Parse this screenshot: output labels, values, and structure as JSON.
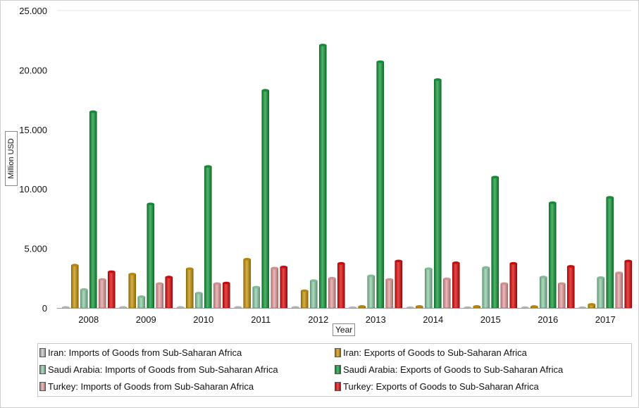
{
  "chart_data": {
    "type": "bar",
    "title": "",
    "xlabel": "Year",
    "ylabel": "Million USD",
    "ylim": [
      0,
      25000
    ],
    "y_ticks": [
      0,
      5000,
      10000,
      15000,
      20000,
      25000
    ],
    "y_tick_labels": [
      "0",
      "5.000",
      "10.000",
      "15.000",
      "20.000",
      "25.000"
    ],
    "grid": false,
    "legend_position": "bottom",
    "categories": [
      "2008",
      "2009",
      "2010",
      "2011",
      "2012",
      "2013",
      "2014",
      "2015",
      "2016",
      "2017"
    ],
    "series": [
      {
        "name": "Iran: Imports of Goods from Sub-Saharan Africa",
        "color": "#c8c8c8",
        "values": [
          50,
          50,
          50,
          50,
          50,
          30,
          30,
          30,
          30,
          30
        ]
      },
      {
        "name": "Iran: Exports of Goods to Sub-Saharan Africa",
        "color": "#c8950a",
        "values": [
          3600,
          2850,
          3300,
          4100,
          1450,
          130,
          130,
          130,
          120,
          300
        ]
      },
      {
        "name": "Saudi Arabia: Imports of Goods from Sub-Saharan Africa",
        "color": "#8fd0a8",
        "values": [
          1550,
          950,
          1250,
          1750,
          2300,
          2700,
          3300,
          3400,
          2600,
          2550
        ]
      },
      {
        "name": "Saudi Arabia: Exports of Goods to Sub-Saharan Africa",
        "color": "#159b3c",
        "values": [
          16500,
          8750,
          11900,
          18300,
          22100,
          20700,
          19200,
          11000,
          8850,
          9300
        ]
      },
      {
        "name": "Turkey: Imports of Goods from Sub-Saharan Africa",
        "color": "#e9a0a0",
        "values": [
          2400,
          2050,
          2050,
          3350,
          2500,
          2400,
          2450,
          2050,
          2050,
          2950
        ]
      },
      {
        "name": "Turkey: Exports of Goods to Sub-Saharan Africa",
        "color": "#e00c0c",
        "values": [
          3050,
          2600,
          2100,
          3450,
          3750,
          3950,
          3800,
          3750,
          3500,
          3950
        ]
      }
    ]
  }
}
